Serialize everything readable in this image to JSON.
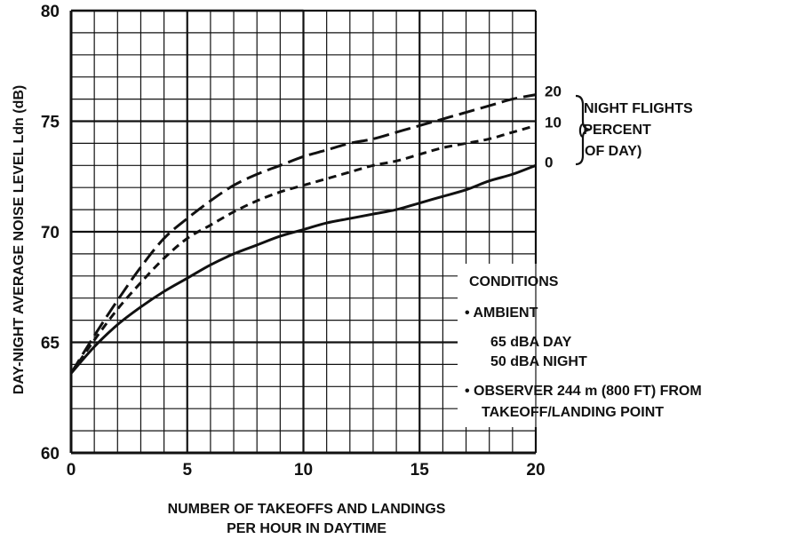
{
  "chart_data": {
    "type": "line",
    "title": "",
    "xlabel_lines": [
      "NUMBER OF TAKEOFFS AND LANDINGS",
      "PER HOUR IN DAYTIME"
    ],
    "ylabel": "DAY-NIGHT AVERAGE NOISE LEVEL Ldn (dB)",
    "xlim": [
      0,
      20
    ],
    "ylim": [
      60,
      80
    ],
    "x_ticks": [
      "0",
      "5",
      "10",
      "15",
      "20"
    ],
    "y_ticks": [
      "60",
      "65",
      "70",
      "75",
      "80"
    ],
    "grid": true,
    "series": [
      {
        "name": "0",
        "style": "solid",
        "x": [
          0,
          1,
          2,
          3,
          4,
          5,
          6,
          7,
          8,
          9,
          10,
          11,
          12,
          13,
          14,
          15,
          16,
          17,
          18,
          19,
          20
        ],
        "y": [
          63.6,
          64.8,
          65.8,
          66.6,
          67.3,
          67.9,
          68.5,
          69.0,
          69.4,
          69.8,
          70.1,
          70.4,
          70.6,
          70.8,
          71.0,
          71.3,
          71.6,
          71.9,
          72.3,
          72.6,
          73.0
        ]
      },
      {
        "name": "10",
        "style": "dashed",
        "x": [
          0,
          1,
          2,
          3,
          4,
          5,
          6,
          7,
          8,
          9,
          10,
          11,
          12,
          13,
          14,
          15,
          16,
          17,
          18,
          19,
          20
        ],
        "y": [
          63.6,
          65.1,
          66.5,
          67.7,
          68.8,
          69.7,
          70.3,
          70.9,
          71.4,
          71.8,
          72.1,
          72.4,
          72.7,
          73.0,
          73.2,
          73.5,
          73.8,
          74.0,
          74.2,
          74.5,
          74.8
        ]
      },
      {
        "name": "20",
        "style": "long-dashed",
        "x": [
          0,
          1,
          2,
          3,
          4,
          5,
          6,
          7,
          8,
          9,
          10,
          11,
          12,
          13,
          14,
          15,
          16,
          17,
          18,
          19,
          20
        ],
        "y": [
          63.6,
          65.3,
          66.9,
          68.4,
          69.7,
          70.6,
          71.4,
          72.1,
          72.6,
          73.0,
          73.4,
          73.7,
          74.0,
          74.2,
          74.5,
          74.8,
          75.1,
          75.4,
          75.7,
          76.0,
          76.2
        ]
      }
    ],
    "annotations": {
      "night_flights": [
        "NIGHT FLIGHTS",
        "(PERCENT",
        "OF DAY)"
      ],
      "conditions": [
        "CONDITIONS",
        "• AMBIENT",
        "65 dBA DAY",
        "50 dBA NIGHT",
        "• OBSERVER 244 m (800 FT) FROM",
        "TAKEOFF/LANDING POINT"
      ]
    }
  }
}
